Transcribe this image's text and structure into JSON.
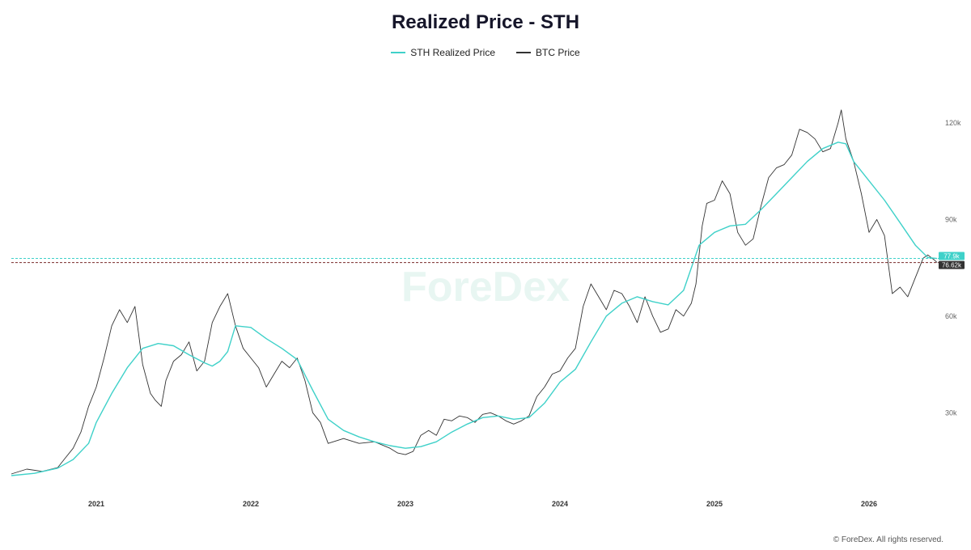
{
  "colors": {
    "sth": "#3fd1c9",
    "btc": "#333333",
    "btc_marker": "#333333",
    "sth_marker": "#3fd1c9"
  },
  "watermark": "ForeDex",
  "copyright": "© ForeDex. All rights reserved.",
  "chart_data": {
    "type": "line",
    "title": "Realized Price - STH",
    "xlabel": "",
    "ylabel": "",
    "x_range": [
      2020.45,
      2026.45
    ],
    "ylim": [
      10000,
      128000
    ],
    "y_ticks": [
      {
        "value": 30000,
        "label": "30k"
      },
      {
        "value": 60000,
        "label": "60k"
      },
      {
        "value": 90000,
        "label": "90k"
      },
      {
        "value": 120000,
        "label": "120k"
      }
    ],
    "x_ticks": [
      {
        "value": 2021,
        "label": "2021"
      },
      {
        "value": 2022,
        "label": "2022"
      },
      {
        "value": 2023,
        "label": "2023"
      },
      {
        "value": 2024,
        "label": "2024"
      },
      {
        "value": 2025,
        "label": "2025"
      },
      {
        "value": 2026,
        "label": "2026"
      }
    ],
    "grid": false,
    "legend": "top-center",
    "series": [
      {
        "name": "STH Realized Price",
        "x": [
          2020.45,
          2020.6,
          2020.75,
          2020.85,
          2020.95,
          2021.0,
          2021.1,
          2021.2,
          2021.3,
          2021.4,
          2021.5,
          2021.6,
          2021.7,
          2021.75,
          2021.8,
          2021.85,
          2021.9,
          2022.0,
          2022.1,
          2022.2,
          2022.3,
          2022.4,
          2022.5,
          2022.6,
          2022.7,
          2022.8,
          2022.9,
          2023.0,
          2023.1,
          2023.2,
          2023.3,
          2023.4,
          2023.5,
          2023.6,
          2023.7,
          2023.8,
          2023.9,
          2024.0,
          2024.1,
          2024.2,
          2024.3,
          2024.4,
          2024.5,
          2024.6,
          2024.7,
          2024.8,
          2024.85,
          2024.9,
          2025.0,
          2025.1,
          2025.2,
          2025.3,
          2025.4,
          2025.5,
          2025.6,
          2025.7,
          2025.8,
          2025.85,
          2025.9,
          2026.0,
          2026.1,
          2026.2,
          2026.3,
          2026.38,
          2026.44
        ],
        "y": [
          10500,
          11200,
          12800,
          15500,
          20500,
          27000,
          36000,
          44000,
          50000,
          51500,
          50800,
          48000,
          45500,
          44500,
          46000,
          49000,
          57000,
          56500,
          53000,
          50000,
          46500,
          37000,
          28000,
          24500,
          22500,
          21000,
          19800,
          19000,
          19500,
          21000,
          24000,
          26500,
          28500,
          29000,
          28000,
          28500,
          33000,
          39500,
          43500,
          52000,
          60000,
          64000,
          66000,
          64500,
          63500,
          68000,
          75000,
          82000,
          86000,
          88000,
          88500,
          93000,
          98000,
          103000,
          108000,
          112000,
          114000,
          113500,
          108000,
          102000,
          96000,
          89000,
          82000,
          78200,
          77900
        ]
      },
      {
        "name": "BTC Price",
        "x": [
          2020.45,
          2020.55,
          2020.65,
          2020.75,
          2020.8,
          2020.85,
          2020.9,
          2020.95,
          2021.0,
          2021.05,
          2021.1,
          2021.15,
          2021.2,
          2021.25,
          2021.3,
          2021.35,
          2021.38,
          2021.42,
          2021.45,
          2021.5,
          2021.55,
          2021.6,
          2021.65,
          2021.7,
          2021.75,
          2021.8,
          2021.85,
          2021.9,
          2021.95,
          2022.0,
          2022.05,
          2022.1,
          2022.15,
          2022.2,
          2022.25,
          2022.3,
          2022.35,
          2022.4,
          2022.45,
          2022.5,
          2022.6,
          2022.7,
          2022.8,
          2022.85,
          2022.9,
          2022.95,
          2023.0,
          2023.05,
          2023.1,
          2023.15,
          2023.2,
          2023.25,
          2023.3,
          2023.35,
          2023.4,
          2023.45,
          2023.5,
          2023.55,
          2023.6,
          2023.65,
          2023.7,
          2023.75,
          2023.8,
          2023.85,
          2023.9,
          2023.95,
          2024.0,
          2024.05,
          2024.1,
          2024.15,
          2024.2,
          2024.25,
          2024.3,
          2024.35,
          2024.4,
          2024.45,
          2024.5,
          2024.55,
          2024.6,
          2024.65,
          2024.7,
          2024.75,
          2024.8,
          2024.85,
          2024.88,
          2024.92,
          2024.95,
          2025.0,
          2025.05,
          2025.1,
          2025.15,
          2025.2,
          2025.25,
          2025.3,
          2025.35,
          2025.4,
          2025.45,
          2025.5,
          2025.55,
          2025.6,
          2025.65,
          2025.7,
          2025.75,
          2025.8,
          2025.82,
          2025.85,
          2025.9,
          2025.95,
          2026.0,
          2026.05,
          2026.1,
          2026.15,
          2026.2,
          2026.25,
          2026.3,
          2026.35,
          2026.38,
          2026.42,
          2026.44
        ],
        "y": [
          11000,
          12500,
          11800,
          13000,
          16000,
          19000,
          24000,
          32000,
          38000,
          47000,
          57000,
          62000,
          58000,
          63000,
          45000,
          36000,
          34000,
          32000,
          40000,
          46000,
          48000,
          52000,
          43000,
          46000,
          58000,
          63000,
          67000,
          57000,
          50000,
          47000,
          44000,
          38000,
          42000,
          46000,
          44000,
          47000,
          40000,
          30000,
          27000,
          20500,
          22000,
          20500,
          21000,
          20000,
          19000,
          17500,
          17000,
          18000,
          23000,
          24500,
          23000,
          28000,
          27500,
          29000,
          28500,
          27000,
          29500,
          30000,
          29000,
          27500,
          26500,
          27500,
          29000,
          35000,
          38000,
          42000,
          43000,
          47000,
          50000,
          63000,
          70000,
          66000,
          62000,
          68000,
          67000,
          63000,
          58000,
          66000,
          60000,
          55000,
          56000,
          62000,
          60000,
          64000,
          70000,
          88000,
          95000,
          96000,
          102000,
          98000,
          86000,
          82000,
          84000,
          94000,
          103000,
          106000,
          107000,
          110000,
          118000,
          117000,
          115000,
          111000,
          112000,
          120000,
          124000,
          115000,
          108000,
          98000,
          86000,
          90000,
          85000,
          67000,
          69000,
          66000,
          72000,
          78000,
          79000,
          77500,
          76620
        ]
      }
    ],
    "annotations": [
      {
        "series": "STH Realized Price",
        "value": 77900,
        "label": "77.9k"
      },
      {
        "series": "BTC Price",
        "value": 76620,
        "label": "76.62k"
      }
    ]
  }
}
